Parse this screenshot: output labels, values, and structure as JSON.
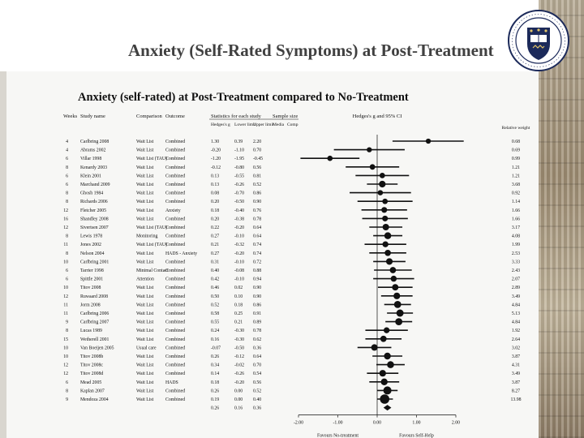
{
  "slide": {
    "title": "Anxiety (Self-Rated Symptoms) at Post-Treatment"
  },
  "colors": {
    "ink": "#111111",
    "title_text": "#404040",
    "background": "#ffffff"
  },
  "icons": {
    "crest": "university-crest-icon"
  },
  "chart_data": {
    "type": "forest",
    "title": "Anxiety (self-rated) at Post-Treatment compared to No-Treatment",
    "columns": [
      "Weeks",
      "Study name",
      "Comparison",
      "Outcome",
      "Statistics for each study",
      "Sample size",
      "Hedges's g and 95% CI"
    ],
    "stat_headers": [
      "Hedges's g",
      "Lower limit",
      "Upper limit",
      "Media",
      "Comp"
    ],
    "weight_header": "Relative weight",
    "xlim": [
      -2,
      2
    ],
    "ticks": [
      -2,
      -1,
      0,
      1,
      2
    ],
    "tick_labels": [
      "-2.00",
      "-1.00",
      "0.00",
      "1.00",
      "2.00"
    ],
    "xlabel_left": "Favours No-treatment",
    "xlabel_right": "Favours Self-Help",
    "studies": [
      {
        "weeks": "4",
        "name": "Carlbring 2008",
        "comparison": "Wait List",
        "outcome": "Combined",
        "g": 1.3,
        "lower": 0.39,
        "upper": 2.2
      },
      {
        "weeks": "4",
        "name": "Abrams 2002",
        "comparison": "Wait List",
        "outcome": "Combined",
        "g": -0.2,
        "lower": -1.1,
        "upper": 0.7
      },
      {
        "weeks": "6",
        "name": "Villar 1998",
        "comparison": "Wait List (TAU)",
        "outcome": "Combined",
        "g": -1.2,
        "lower": -1.95,
        "upper": -0.45
      },
      {
        "weeks": "8",
        "name": "Kenardy 2003",
        "comparison": "Wait List",
        "outcome": "Combined",
        "g": -0.12,
        "lower": -0.8,
        "upper": 0.56
      },
      {
        "weeks": "6",
        "name": "Klein 2001",
        "comparison": "Wait List",
        "outcome": "Combined",
        "g": 0.13,
        "lower": -0.55,
        "upper": 0.81
      },
      {
        "weeks": "6",
        "name": "Marchand 2009",
        "comparison": "Wait List",
        "outcome": "Combined",
        "g": 0.13,
        "lower": -0.26,
        "upper": 0.52
      },
      {
        "weeks": "8",
        "name": "Ghosh 1984",
        "comparison": "Wait List",
        "outcome": "Combined",
        "g": 0.08,
        "lower": -0.7,
        "upper": 0.86
      },
      {
        "weeks": "8",
        "name": "Richards 2006",
        "comparison": "Wait List",
        "outcome": "Combined",
        "g": 0.2,
        "lower": -0.5,
        "upper": 0.9
      },
      {
        "weeks": "12",
        "name": "Fletcher 2005",
        "comparison": "Wait List",
        "outcome": "Anxiety",
        "g": 0.18,
        "lower": -0.4,
        "upper": 0.76
      },
      {
        "weeks": "16",
        "name": "Shandley 2008",
        "comparison": "Wait List",
        "outcome": "Combined",
        "g": 0.2,
        "lower": -0.38,
        "upper": 0.78
      },
      {
        "weeks": "12",
        "name": "Sivertsen 2007",
        "comparison": "Wait List (TAU)",
        "outcome": "Combined",
        "g": 0.22,
        "lower": -0.2,
        "upper": 0.64
      },
      {
        "weeks": "8",
        "name": "Lewis 1978",
        "comparison": "Monitoring",
        "outcome": "Combined",
        "g": 0.27,
        "lower": -0.1,
        "upper": 0.64
      },
      {
        "weeks": "11",
        "name": "Jones 2002",
        "comparison": "Wait List (TAU)",
        "outcome": "Combined",
        "g": 0.21,
        "lower": -0.32,
        "upper": 0.74
      },
      {
        "weeks": "8",
        "name": "Nelson 2004",
        "comparison": "Wait List",
        "outcome": "HADS - Anxiety",
        "g": 0.27,
        "lower": -0.2,
        "upper": 0.74
      },
      {
        "weeks": "10",
        "name": "Carlbring 2001",
        "comparison": "Wait List",
        "outcome": "Combined",
        "g": 0.31,
        "lower": -0.1,
        "upper": 0.72
      },
      {
        "weeks": "6",
        "name": "Tarrier 1998",
        "comparison": "Minimal Contact",
        "outcome": "Combined",
        "g": 0.4,
        "lower": -0.08,
        "upper": 0.88
      },
      {
        "weeks": "6",
        "name": "Spittle 2001",
        "comparison": "Attention",
        "outcome": "Combined",
        "g": 0.42,
        "lower": -0.1,
        "upper": 0.94
      },
      {
        "weeks": "10",
        "name": "Titov 2008",
        "comparison": "Wait List",
        "outcome": "Combined",
        "g": 0.46,
        "lower": 0.02,
        "upper": 0.9
      },
      {
        "weeks": "12",
        "name": "Ruwaard 2008",
        "comparison": "Wait List",
        "outcome": "Combined",
        "g": 0.5,
        "lower": 0.1,
        "upper": 0.9
      },
      {
        "weeks": "11",
        "name": "Jorm 2008",
        "comparison": "Wait List",
        "outcome": "Combined",
        "g": 0.52,
        "lower": 0.18,
        "upper": 0.86
      },
      {
        "weeks": "11",
        "name": "Carlbring 2006",
        "comparison": "Wait List",
        "outcome": "Combined",
        "g": 0.58,
        "lower": 0.25,
        "upper": 0.91
      },
      {
        "weeks": "9",
        "name": "Carlbring 2007",
        "comparison": "Wait List",
        "outcome": "Combined",
        "g": 0.55,
        "lower": 0.21,
        "upper": 0.89
      },
      {
        "weeks": "8",
        "name": "Lucas 1989",
        "comparison": "Wait List",
        "outcome": "Combined",
        "g": 0.24,
        "lower": -0.3,
        "upper": 0.78
      },
      {
        "weeks": "15",
        "name": "Wetherell 2001",
        "comparison": "Wait List",
        "outcome": "Combined",
        "g": 0.16,
        "lower": -0.3,
        "upper": 0.62
      },
      {
        "weeks": "10",
        "name": "Van Boeijen 2005",
        "comparison": "Usual care",
        "outcome": "Combined",
        "g": -0.07,
        "lower": -0.5,
        "upper": 0.36
      },
      {
        "weeks": "10",
        "name": "Titov 2008b",
        "comparison": "Wait List",
        "outcome": "Combined",
        "g": 0.26,
        "lower": -0.12,
        "upper": 0.64
      },
      {
        "weeks": "12",
        "name": "Titov 2008c",
        "comparison": "Wait List",
        "outcome": "Combined",
        "g": 0.34,
        "lower": -0.02,
        "upper": 0.7
      },
      {
        "weeks": "12",
        "name": "Titov 2008d",
        "comparison": "Wait List",
        "outcome": "Combined",
        "g": 0.14,
        "lower": -0.26,
        "upper": 0.54
      },
      {
        "weeks": "6",
        "name": "Mead 2005",
        "comparison": "Wait List",
        "outcome": "HADS",
        "g": 0.18,
        "lower": -0.2,
        "upper": 0.56
      },
      {
        "weeks": "8",
        "name": "Kaplan 2007",
        "comparison": "Wait List",
        "outcome": "Combined",
        "g": 0.26,
        "lower": 0.0,
        "upper": 0.52
      },
      {
        "weeks": "9",
        "name": "Mendoza 2004",
        "comparison": "Wait List",
        "outcome": "Combined",
        "g": 0.19,
        "lower": 0.0,
        "upper": 0.4
      }
    ],
    "summary": {
      "g": 0.26,
      "lower": 0.16,
      "upper": 0.36
    }
  }
}
